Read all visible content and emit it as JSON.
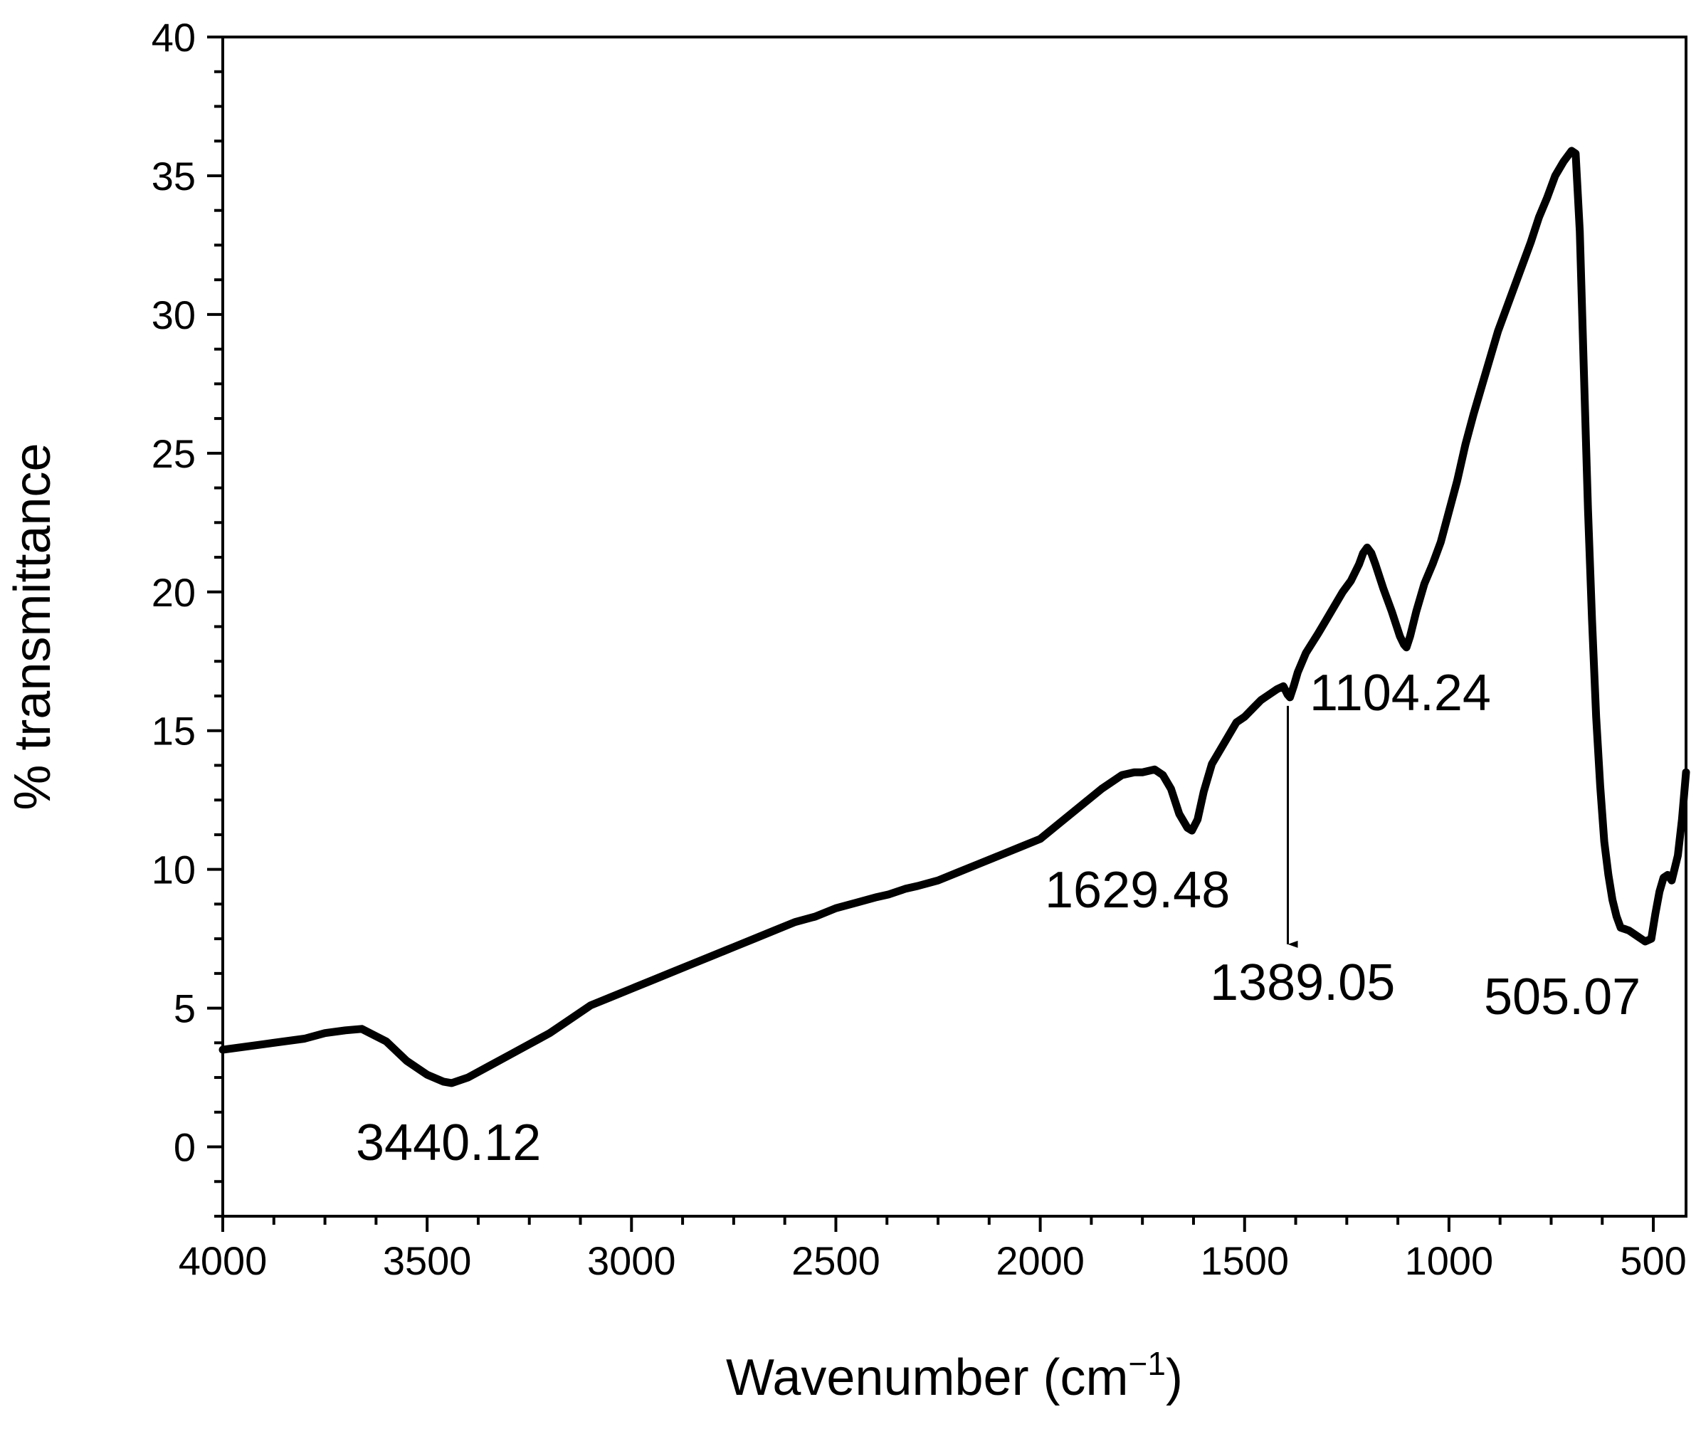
{
  "chart_data": {
    "type": "line",
    "xlabel": "Wavenumber (cm",
    "xlabel_sup": "−1",
    "xlabel_close": ")",
    "ylabel": "% transmittance",
    "xlim": [
      4000,
      420
    ],
    "ylim": [
      -2.5,
      40
    ],
    "x_reversed": true,
    "xticks": [
      4000,
      3500,
      3000,
      2500,
      2000,
      1500,
      1000,
      500
    ],
    "yticks": [
      0,
      5,
      10,
      15,
      20,
      25,
      30,
      35,
      40
    ],
    "line_color": "#000000",
    "grid": false,
    "legend": false,
    "series": [
      {
        "x": [
          4000,
          3900,
          3800,
          3750,
          3700,
          3660,
          3600,
          3550,
          3500,
          3460,
          3440,
          3400,
          3350,
          3300,
          3250,
          3200,
          3150,
          3100,
          3050,
          3000,
          2950,
          2900,
          2850,
          2800,
          2750,
          2700,
          2650,
          2600,
          2550,
          2500,
          2450,
          2400,
          2370,
          2350,
          2330,
          2300,
          2250,
          2200,
          2150,
          2100,
          2050,
          2000,
          1950,
          1900,
          1850,
          1800,
          1770,
          1750,
          1720,
          1700,
          1680,
          1660,
          1640,
          1629,
          1615,
          1600,
          1580,
          1560,
          1540,
          1520,
          1500,
          1480,
          1460,
          1440,
          1420,
          1405,
          1395,
          1389,
          1380,
          1370,
          1350,
          1320,
          1300,
          1280,
          1260,
          1240,
          1220,
          1210,
          1200,
          1190,
          1180,
          1160,
          1140,
          1120,
          1110,
          1104,
          1095,
          1080,
          1060,
          1040,
          1020,
          1000,
          980,
          960,
          940,
          920,
          900,
          880,
          860,
          840,
          820,
          800,
          780,
          760,
          740,
          720,
          700,
          690,
          680,
          670,
          660,
          650,
          640,
          630,
          620,
          610,
          600,
          590,
          580,
          560,
          540,
          520,
          505,
          495,
          485,
          475,
          465,
          455,
          440,
          430,
          420
        ],
        "y": [
          3.5,
          3.7,
          3.9,
          4.1,
          4.2,
          4.25,
          3.8,
          3.1,
          2.6,
          2.35,
          2.3,
          2.5,
          2.9,
          3.3,
          3.7,
          4.1,
          4.6,
          5.1,
          5.4,
          5.7,
          6.0,
          6.3,
          6.6,
          6.9,
          7.2,
          7.5,
          7.8,
          8.1,
          8.3,
          8.6,
          8.8,
          9.0,
          9.1,
          9.2,
          9.3,
          9.4,
          9.6,
          9.9,
          10.2,
          10.5,
          10.8,
          11.1,
          11.7,
          12.3,
          12.9,
          13.4,
          13.5,
          13.5,
          13.6,
          13.4,
          12.9,
          12.0,
          11.5,
          11.4,
          11.8,
          12.8,
          13.8,
          14.3,
          14.8,
          15.3,
          15.5,
          15.8,
          16.1,
          16.3,
          16.5,
          16.6,
          16.3,
          16.2,
          16.6,
          17.1,
          17.8,
          18.5,
          19.0,
          19.5,
          20.0,
          20.4,
          21.0,
          21.4,
          21.6,
          21.4,
          21.0,
          20.1,
          19.3,
          18.4,
          18.1,
          18.0,
          18.4,
          19.3,
          20.3,
          21.0,
          21.8,
          22.9,
          24.0,
          25.3,
          26.4,
          27.4,
          28.4,
          29.4,
          30.2,
          31.0,
          31.8,
          32.6,
          33.5,
          34.2,
          35.0,
          35.5,
          35.9,
          35.8,
          33.0,
          28.0,
          23.0,
          19.0,
          15.5,
          13.0,
          11.0,
          9.8,
          8.9,
          8.3,
          7.9,
          7.8,
          7.6,
          7.4,
          7.5,
          8.4,
          9.2,
          9.7,
          9.8,
          9.6,
          10.5,
          11.8,
          13.5
        ]
      }
    ],
    "annotations": [
      {
        "text": "3440.12",
        "x": 3440,
        "y": 2.3
      },
      {
        "text": "1629.48",
        "x": 1629,
        "y": 11.4
      },
      {
        "text": "1389.05",
        "x": 1389,
        "y": 16.2,
        "arrow_to_y": 7.3
      },
      {
        "text": "1104.24",
        "x": 1104,
        "y": 18.0
      },
      {
        "text": "505.07",
        "x": 505,
        "y": 7.4
      }
    ]
  }
}
